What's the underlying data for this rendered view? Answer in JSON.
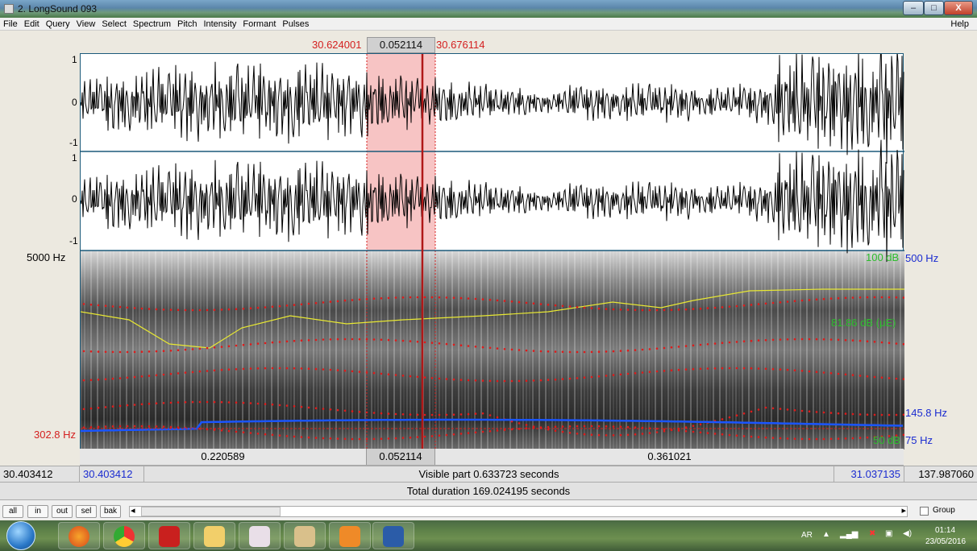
{
  "window": {
    "title": "2. LongSound 093",
    "min": "–",
    "max": "□",
    "close": "X"
  },
  "menu": [
    "File",
    "Edit",
    "Query",
    "View",
    "Select",
    "Spectrum",
    "Pitch",
    "Intensity",
    "Formant",
    "Pulses"
  ],
  "help": "Help",
  "selection_top": {
    "start": "30.624001",
    "duration": "0.052114",
    "end": "30.676114"
  },
  "axes": {
    "wave1_top": "1",
    "wave1_mid": "0",
    "wave1_bot": "-1",
    "wave2_top": "1",
    "wave2_mid": "0",
    "wave2_bot": "-1",
    "spec_top_hz": "5000 Hz",
    "spec_cursor_hz": "302.8 Hz",
    "intensity_top": "100 dB",
    "intensity_cursor": "81.86 dB (μE)",
    "intensity_bot": "50 dB",
    "pitch_top": "500 Hz",
    "pitch_cursor": "145.8 Hz",
    "pitch_bot": "75 Hz"
  },
  "segments": {
    "left": "0.220589",
    "middle": "0.052114",
    "right": "0.361021"
  },
  "status": {
    "window_start": "30.403412",
    "visible_start": "30.403412",
    "visible_part": "Visible part 0.633723 seconds",
    "visible_end": "31.037135",
    "window_end": "137.987060",
    "total": "Total duration 169.024195 seconds"
  },
  "zoom_buttons": [
    "all",
    "in",
    "out",
    "sel",
    "bak"
  ],
  "scroll_left": "◂",
  "scroll_right": "▸",
  "group_label": "Group",
  "tray": {
    "lang": "AR",
    "time": "01:14",
    "date": "23/05/2016"
  },
  "colors": {
    "selection": "#f7c4c4",
    "pitch": "#1a55ff",
    "formant": "#e01a1a",
    "intensity": "#e8e832",
    "cursor": "#b01818"
  }
}
